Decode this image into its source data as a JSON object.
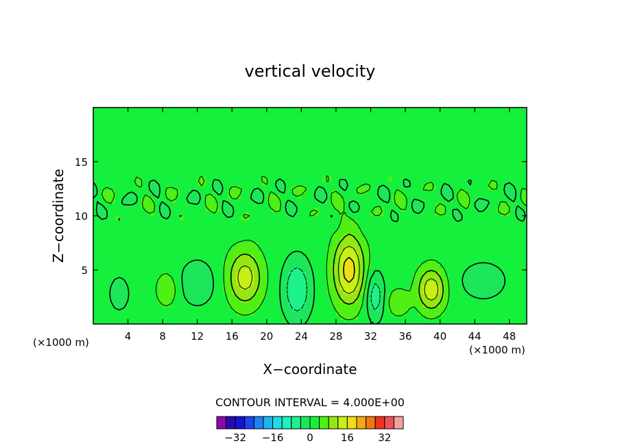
{
  "chart_data": {
    "type": "heatmap",
    "title": "vertical velocity",
    "xlabel": "X−coordinate",
    "ylabel": "Z−coordinate",
    "x_unit": "(×1000 m)",
    "x_unit_right": "(×1000 m)",
    "xlim": [
      0,
      50
    ],
    "ylim": [
      0,
      20
    ],
    "x_ticks": [
      4,
      8,
      12,
      16,
      20,
      24,
      28,
      32,
      36,
      40,
      44,
      48
    ],
    "y_ticks": [
      5,
      10,
      15
    ],
    "contour_interval_label": "CONTOUR INTERVAL = 4.000E+00",
    "contour_interval": 4,
    "background_level": 2,
    "colorbar": {
      "levels": [
        -38,
        -34,
        -30,
        -26,
        -22,
        -18,
        -14,
        -10,
        -6,
        -2,
        2,
        6,
        10,
        14,
        18,
        22,
        26,
        30,
        34,
        38
      ],
      "colors": [
        "#8a0aa6",
        "#2a0ab0",
        "#1414d2",
        "#1e46f0",
        "#1e82f0",
        "#1eb4f0",
        "#1edce6",
        "#1ef0be",
        "#1ef08c",
        "#1ee65a",
        "#14f03c",
        "#50f014",
        "#96e614",
        "#c8f014",
        "#f0dc14",
        "#f0aa14",
        "#f07814",
        "#f0321e",
        "#f0505a",
        "#f5a0a0"
      ],
      "tick_labels": [
        "−32",
        "−16",
        "0",
        "16",
        "32"
      ],
      "tick_values": [
        -32,
        -16,
        0,
        16,
        32
      ]
    },
    "features": [
      {
        "x": 3,
        "z": 2.8,
        "rx": 1.3,
        "rz": 1.8,
        "w": -4
      },
      {
        "x": 8.5,
        "z": 3.2,
        "rx": 1.2,
        "rz": 1.5,
        "w": 6
      },
      {
        "x": 12,
        "z": 3.8,
        "rx": 2.2,
        "rz": 2.2,
        "w": -5
      },
      {
        "x": 17.5,
        "z": 4.3,
        "rx": 2.0,
        "rz": 2.6,
        "w": 12
      },
      {
        "x": 23.5,
        "z": 3.2,
        "rx": 1.6,
        "rz": 2.8,
        "w": -10
      },
      {
        "x": 29.5,
        "z": 5.0,
        "rx": 1.8,
        "rz": 3.2,
        "w": 16
      },
      {
        "x": 32.5,
        "z": 2.6,
        "rx": 1.0,
        "rz": 2.2,
        "w": -9
      },
      {
        "x": 35.2,
        "z": 2.0,
        "rx": 1.2,
        "rz": 1.2,
        "w": 6
      },
      {
        "x": 39,
        "z": 3.2,
        "rx": 1.6,
        "rz": 2.0,
        "w": 13
      },
      {
        "x": 45,
        "z": 4.0,
        "rx": 3.0,
        "rz": 2.0,
        "w": -4
      }
    ]
  }
}
